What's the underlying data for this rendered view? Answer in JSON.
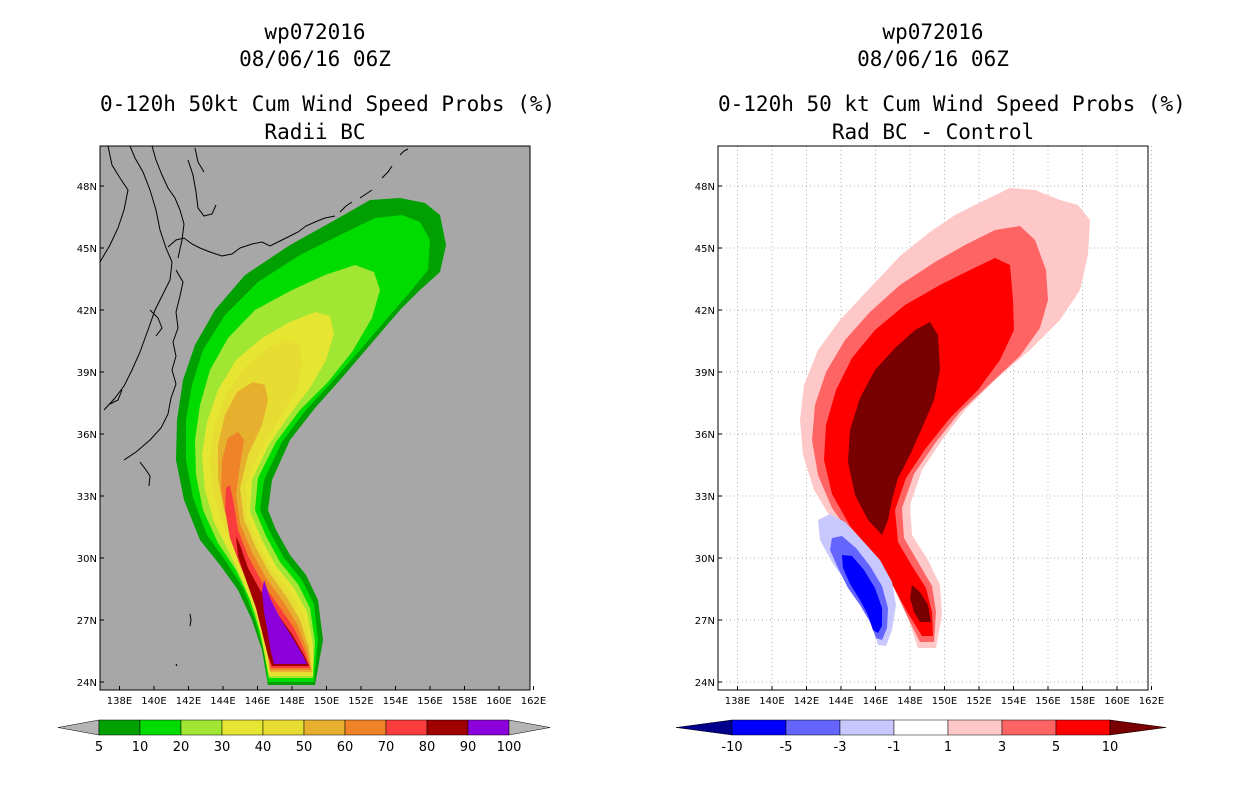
{
  "left_panel": {
    "title_lines": [
      "wp072016",
      "08/06/16 06Z",
      "0-120h 50kt Cum Wind Speed Probs (%)",
      "Radii BC"
    ],
    "colorbar": {
      "labels": [
        "5",
        "10",
        "20",
        "30",
        "40",
        "50",
        "60",
        "70",
        "80",
        "90",
        "100"
      ],
      "colors": [
        "#b4b4b4",
        "#00a000",
        "#00dc00",
        "#a0e632",
        "#e6e632",
        "#e6dc32",
        "#e6af2d",
        "#f08228",
        "#fa3c3c",
        "#a00000",
        "#8c00dc",
        "#b4b4b4"
      ]
    }
  },
  "right_panel": {
    "title_lines": [
      "wp072016",
      "08/06/16 06Z",
      "0-120h 50 kt Cum Wind Speed Probs (%)",
      "Rad BC - Control"
    ],
    "colorbar": {
      "labels": [
        "-10",
        "-5",
        "-3",
        "-1",
        "1",
        "3",
        "5",
        "10"
      ],
      "colors": [
        "#00008c",
        "#0000ff",
        "#6464ff",
        "#c8c8ff",
        "#ffffff",
        "#ffc8c8",
        "#ff6464",
        "#ff0000",
        "#780000"
      ]
    }
  },
  "map_axes": {
    "x_ticks": [
      "138E",
      "140E",
      "142E",
      "144E",
      "146E",
      "148E",
      "150E",
      "152E",
      "154E",
      "156E",
      "158E",
      "160E",
      "162E"
    ],
    "y_ticks": [
      "48N",
      "45N",
      "42N",
      "39N",
      "36N",
      "33N",
      "30N",
      "27N",
      "24N"
    ]
  },
  "colors": {
    "map_background_left": "#a7a7a7",
    "map_background_right": "#ffffff",
    "grid": "#b0b0b0",
    "coast": "#000000"
  }
}
